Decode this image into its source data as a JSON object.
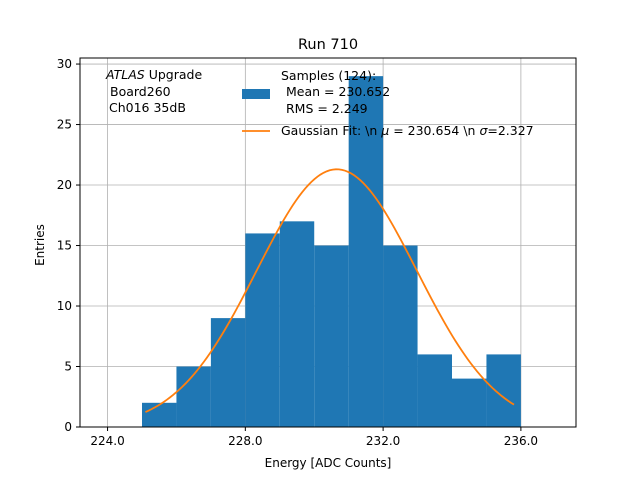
{
  "chart_data": {
    "type": "bar",
    "title": "Run 710",
    "xlabel": "Energy [ADC Counts]",
    "ylabel": "Entries",
    "xlim": [
      223.2,
      237.6
    ],
    "ylim": [
      0,
      30.5
    ],
    "grid": true,
    "x_ticks": [
      224,
      228,
      232,
      236
    ],
    "x_tick_labels": [
      "224.0",
      "228.0",
      "232.0",
      "236.0"
    ],
    "y_ticks": [
      0,
      5,
      10,
      15,
      20,
      25,
      30
    ],
    "y_tick_labels": [
      "0",
      "5",
      "10",
      "15",
      "20",
      "25",
      "30"
    ],
    "histogram": {
      "bin_edges": [
        225,
        226,
        227,
        228,
        229,
        230,
        231,
        232,
        233,
        234,
        235,
        236
      ],
      "counts": [
        2,
        5,
        9,
        16,
        17,
        15,
        29,
        15,
        6,
        4,
        6
      ],
      "color": "#1f77b4"
    },
    "fit": {
      "mu": 230.654,
      "sigma": 2.327,
      "peak": 21.3,
      "x_range": [
        225.1,
        235.8
      ],
      "color": "#ff7f0e"
    },
    "annotation": {
      "line1_italic": "ATLAS",
      "line1_rest": " Upgrade",
      "line2": "Board260",
      "line3": "Ch016 35dB"
    },
    "legend": {
      "placement": "top-right",
      "samples_line1": "Samples (124):",
      "samples_line2": "Mean = 230.652",
      "samples_line3": "RMS = 2.249",
      "fit_prefix": "Gaussian Fit: \\n ",
      "mu_symbol": "μ",
      "fit_mid": " = 230.654 \\n ",
      "sigma_symbol": "σ",
      "fit_suffix": "=2.327"
    }
  }
}
